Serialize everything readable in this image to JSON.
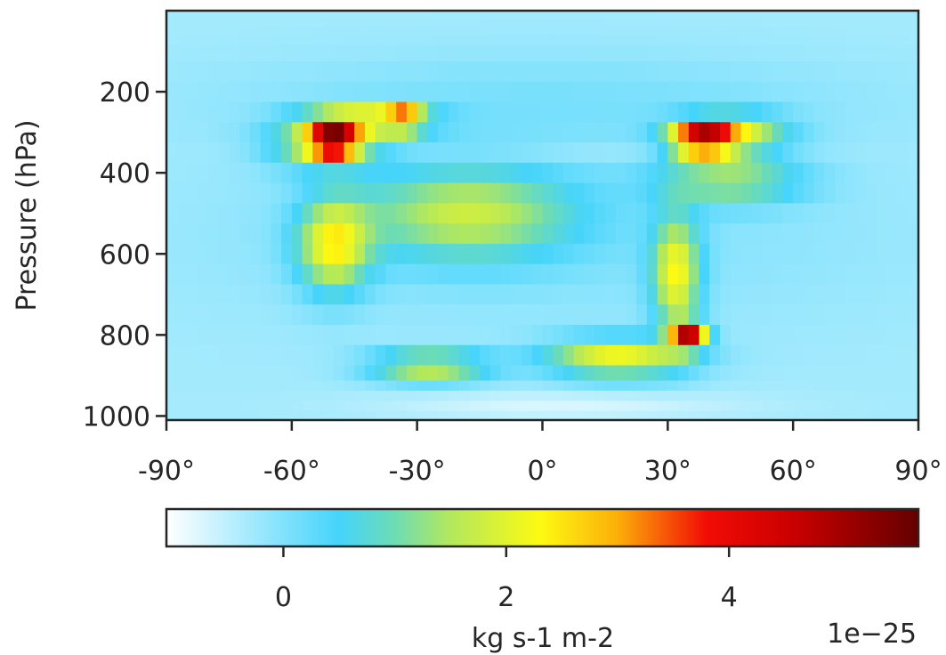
{
  "chart_data": {
    "type": "heatmap",
    "title": "",
    "xlabel": "",
    "ylabel": "Pressure (hPa)",
    "x_ticks": [
      {
        "value": -90,
        "label": "-90°"
      },
      {
        "value": -60,
        "label": "-60°"
      },
      {
        "value": -30,
        "label": "-30°"
      },
      {
        "value": 0,
        "label": "0°"
      },
      {
        "value": 30,
        "label": "30°"
      },
      {
        "value": 60,
        "label": "60°"
      },
      {
        "value": 90,
        "label": "90°"
      }
    ],
    "y_ticks": [
      {
        "value": 200,
        "label": "200"
      },
      {
        "value": 400,
        "label": "400"
      },
      {
        "value": 600,
        "label": "600"
      },
      {
        "value": 800,
        "label": "800"
      },
      {
        "value": 1000,
        "label": "1000"
      }
    ],
    "xlim": [
      -90,
      90
    ],
    "ylim": [
      1010,
      0
    ],
    "lat_step": 2.5,
    "pressure_levels": [
      10,
      30,
      50,
      70,
      100,
      150,
      200,
      250,
      300,
      350,
      400,
      450,
      500,
      550,
      600,
      650,
      700,
      750,
      800,
      850,
      900,
      925,
      950,
      975,
      1000
    ],
    "value_features": [
      {
        "lat": -50,
        "p": 320,
        "value": 4.3,
        "lat_width": 4,
        "p_width": 25
      },
      {
        "lat": 38,
        "p": 320,
        "value": 4.1,
        "lat_width": 5,
        "p_width": 25
      },
      {
        "lat": -33,
        "p": 268,
        "value": 3.0,
        "lat_width": 3,
        "p_width": 18
      },
      {
        "lat": -42,
        "p": 270,
        "value": 2.4,
        "lat_width": 10,
        "p_width": 22
      },
      {
        "lat": 45,
        "p": 305,
        "value": 2.0,
        "lat_width": 9,
        "p_width": 35
      },
      {
        "lat": -52,
        "p": 330,
        "value": 1.8,
        "lat_width": 9,
        "p_width": 40
      },
      {
        "lat": 35,
        "p": 800,
        "value": 4.2,
        "lat_width": 3,
        "p_width": 22
      },
      {
        "lat": -50,
        "p": 580,
        "value": 2.1,
        "lat_width": 6,
        "p_width": 80
      },
      {
        "lat": 32,
        "p": 650,
        "value": 2.1,
        "lat_width": 4,
        "p_width": 100
      },
      {
        "lat": -27,
        "p": 880,
        "value": 2.2,
        "lat_width": 10,
        "p_width": 25
      },
      {
        "lat": 18,
        "p": 860,
        "value": 2.2,
        "lat_width": 12,
        "p_width": 35
      },
      {
        "lat": -18,
        "p": 500,
        "value": 1.5,
        "lat_width": 18,
        "p_width": 80
      },
      {
        "lat": 45,
        "p": 420,
        "value": 1.3,
        "lat_width": 12,
        "p_width": 40
      }
    ],
    "colorbar": {
      "label": "kg s-1 m-2",
      "scale_label": "1e−25",
      "range": [
        -1.05,
        5.7
      ],
      "ticks": [
        {
          "value": 0,
          "label": "0"
        },
        {
          "value": 2,
          "label": "2"
        },
        {
          "value": 4,
          "label": "4"
        }
      ],
      "colormap_stops": [
        {
          "value": -1.05,
          "color": "#ffffff"
        },
        {
          "value": 0.5,
          "color": "#45d4fb"
        },
        {
          "value": 1.0,
          "color": "#6ddcb4"
        },
        {
          "value": 1.5,
          "color": "#b3e85c"
        },
        {
          "value": 2.3,
          "color": "#fdfa12"
        },
        {
          "value": 3.0,
          "color": "#fcae0a"
        },
        {
          "value": 3.8,
          "color": "#f20c05"
        },
        {
          "value": 4.6,
          "color": "#c80000"
        },
        {
          "value": 5.7,
          "color": "#640000"
        }
      ],
      "background_value": -0.3
    },
    "grid": false,
    "legend": "none"
  }
}
